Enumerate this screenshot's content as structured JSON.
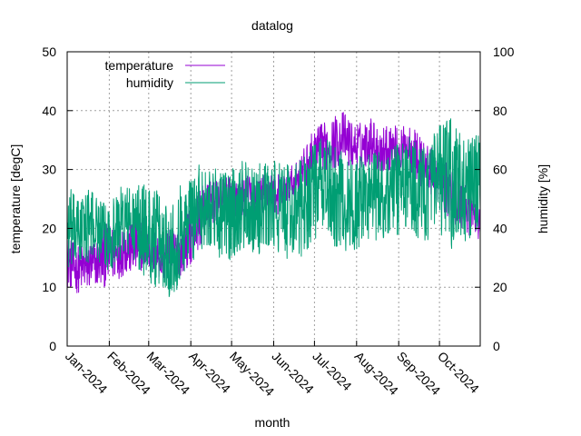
{
  "chart_data": {
    "type": "line",
    "title": "datalog",
    "xlabel": "month",
    "ylabel_left": "temperature [degC]",
    "ylabel_right": "humidity [%]",
    "ylim_left": [
      0,
      50
    ],
    "ylim_right": [
      0,
      100
    ],
    "yticks_left": [
      0,
      10,
      20,
      30,
      40,
      50
    ],
    "yticks_right": [
      0,
      20,
      40,
      60,
      80,
      100
    ],
    "xlim": [
      "2024-01-01",
      "2024-10-31"
    ],
    "x_ticks": [
      {
        "date": "2024-01-01",
        "label": "Jan-2024"
      },
      {
        "date": "2024-02-01",
        "label": "Feb-2024"
      },
      {
        "date": "2024-03-01",
        "label": "Mar-2024"
      },
      {
        "date": "2024-04-01",
        "label": "Apr-2024"
      },
      {
        "date": "2024-05-01",
        "label": "May-2024"
      },
      {
        "date": "2024-06-01",
        "label": "Jun-2024"
      },
      {
        "date": "2024-07-01",
        "label": "Jul-2024"
      },
      {
        "date": "2024-08-01",
        "label": "Aug-2024"
      },
      {
        "date": "2024-09-01",
        "label": "Sep-2024"
      },
      {
        "date": "2024-10-01",
        "label": "Oct-2024"
      }
    ],
    "grid": true,
    "legend_position": "top-left",
    "series": [
      {
        "name": "temperature",
        "axis": "left",
        "color": "#9400d3",
        "x": [
          "2024-01-01",
          "2024-01-08",
          "2024-01-15",
          "2024-01-22",
          "2024-01-29",
          "2024-02-05",
          "2024-02-12",
          "2024-02-19",
          "2024-02-26",
          "2024-03-04",
          "2024-03-11",
          "2024-03-18",
          "2024-03-25",
          "2024-04-01",
          "2024-04-08",
          "2024-04-15",
          "2024-04-22",
          "2024-04-29",
          "2024-05-06",
          "2024-05-13",
          "2024-05-20",
          "2024-05-27",
          "2024-06-03",
          "2024-06-10",
          "2024-06-17",
          "2024-06-24",
          "2024-07-01",
          "2024-07-08",
          "2024-07-15",
          "2024-07-22",
          "2024-07-29",
          "2024-08-05",
          "2024-08-12",
          "2024-08-19",
          "2024-08-26",
          "2024-09-02",
          "2024-09-09",
          "2024-09-16",
          "2024-09-23",
          "2024-09-30",
          "2024-10-07",
          "2024-10-14",
          "2024-10-21",
          "2024-10-28"
        ],
        "y": [
          15,
          13,
          14,
          13,
          16,
          15,
          17,
          16,
          18,
          15,
          14,
          16,
          15,
          19,
          22,
          24,
          25,
          26,
          25,
          26,
          25,
          27,
          26,
          27,
          28,
          30,
          32,
          33,
          34,
          35,
          34,
          34,
          35,
          33,
          34,
          33,
          34,
          32,
          31,
          29,
          27,
          25,
          24,
          22
        ],
        "min": [
          10,
          9,
          9,
          10,
          10,
          11,
          12,
          12,
          13,
          12,
          11,
          12,
          12,
          14,
          17,
          20,
          22,
          22,
          22,
          22,
          21,
          23,
          22,
          24,
          25,
          26,
          29,
          30,
          30,
          31,
          30,
          30,
          31,
          29,
          30,
          29,
          30,
          27,
          26,
          24,
          22,
          20,
          19,
          18
        ],
        "max": [
          19,
          17,
          18,
          18,
          21,
          20,
          22,
          21,
          23,
          20,
          19,
          20,
          20,
          24,
          27,
          28,
          28,
          29,
          28,
          29,
          28,
          30,
          29,
          30,
          31,
          34,
          37,
          38,
          39,
          40,
          38,
          38,
          39,
          37,
          38,
          37,
          38,
          36,
          34,
          33,
          31,
          29,
          28,
          26
        ]
      },
      {
        "name": "humidity",
        "axis": "right",
        "color": "#009e73",
        "x": [
          "2024-01-01",
          "2024-01-08",
          "2024-01-15",
          "2024-01-22",
          "2024-01-29",
          "2024-02-05",
          "2024-02-12",
          "2024-02-19",
          "2024-02-26",
          "2024-03-04",
          "2024-03-11",
          "2024-03-18",
          "2024-03-25",
          "2024-04-01",
          "2024-04-08",
          "2024-04-15",
          "2024-04-22",
          "2024-04-29",
          "2024-05-06",
          "2024-05-13",
          "2024-05-20",
          "2024-05-27",
          "2024-06-03",
          "2024-06-10",
          "2024-06-17",
          "2024-06-24",
          "2024-07-01",
          "2024-07-08",
          "2024-07-15",
          "2024-07-22",
          "2024-07-29",
          "2024-08-05",
          "2024-08-12",
          "2024-08-19",
          "2024-08-26",
          "2024-09-02",
          "2024-09-09",
          "2024-09-16",
          "2024-09-23",
          "2024-09-30",
          "2024-10-07",
          "2024-10-14",
          "2024-10-21",
          "2024-10-28"
        ],
        "y": [
          40,
          38,
          42,
          40,
          36,
          38,
          44,
          42,
          40,
          38,
          36,
          34,
          40,
          44,
          48,
          50,
          48,
          46,
          50,
          52,
          48,
          50,
          52,
          50,
          48,
          52,
          54,
          56,
          52,
          50,
          48,
          50,
          52,
          50,
          54,
          56,
          58,
          54,
          56,
          58,
          62,
          56,
          54,
          52
        ],
        "min": [
          24,
          26,
          28,
          30,
          26,
          26,
          30,
          28,
          24,
          20,
          18,
          16,
          22,
          28,
          32,
          34,
          30,
          28,
          32,
          34,
          30,
          32,
          30,
          30,
          28,
          32,
          36,
          38,
          34,
          32,
          30,
          34,
          36,
          34,
          36,
          38,
          40,
          36,
          36,
          38,
          30,
          34,
          36,
          36
        ],
        "max": [
          56,
          50,
          54,
          52,
          48,
          52,
          56,
          54,
          56,
          54,
          52,
          50,
          56,
          60,
          62,
          62,
          60,
          60,
          62,
          64,
          62,
          62,
          64,
          62,
          62,
          66,
          70,
          72,
          68,
          66,
          64,
          66,
          68,
          66,
          70,
          70,
          72,
          68,
          70,
          74,
          80,
          74,
          70,
          72
        ]
      }
    ]
  }
}
